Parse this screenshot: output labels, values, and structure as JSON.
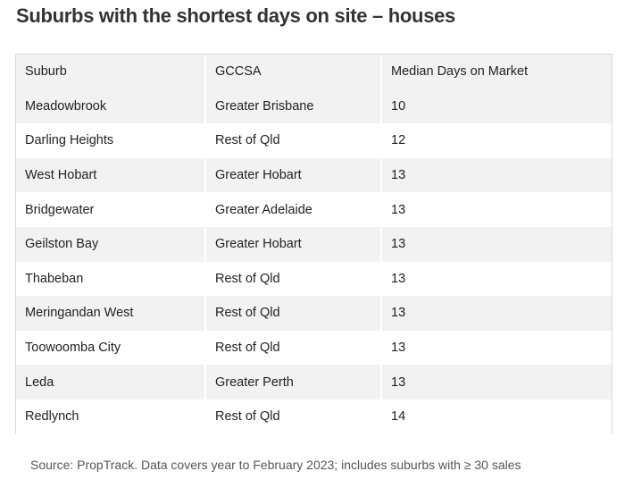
{
  "title": "Suburbs with the shortest days on site – houses",
  "table": {
    "headers": [
      "Suburb",
      "GCCSA",
      "Median Days on Market"
    ],
    "rows": [
      [
        "Meadowbrook",
        "Greater Brisbane",
        "10"
      ],
      [
        "Darling Heights",
        "Rest of Qld",
        "12"
      ],
      [
        "West Hobart",
        "Greater Hobart",
        "13"
      ],
      [
        "Bridgewater",
        "Greater Adelaide",
        "13"
      ],
      [
        "Geilston Bay",
        "Greater Hobart",
        "13"
      ],
      [
        "Thabeban",
        "Rest of Qld",
        "13"
      ],
      [
        "Meringandan West",
        "Rest of Qld",
        "13"
      ],
      [
        "Toowoomba City",
        "Rest of Qld",
        "13"
      ],
      [
        "Leda",
        "Greater Perth",
        "13"
      ],
      [
        "Redlynch",
        "Rest of Qld",
        "14"
      ]
    ]
  },
  "source": "Source: PropTrack. Data covers year to February 2023; includes suburbs with ≥ 30 sales"
}
